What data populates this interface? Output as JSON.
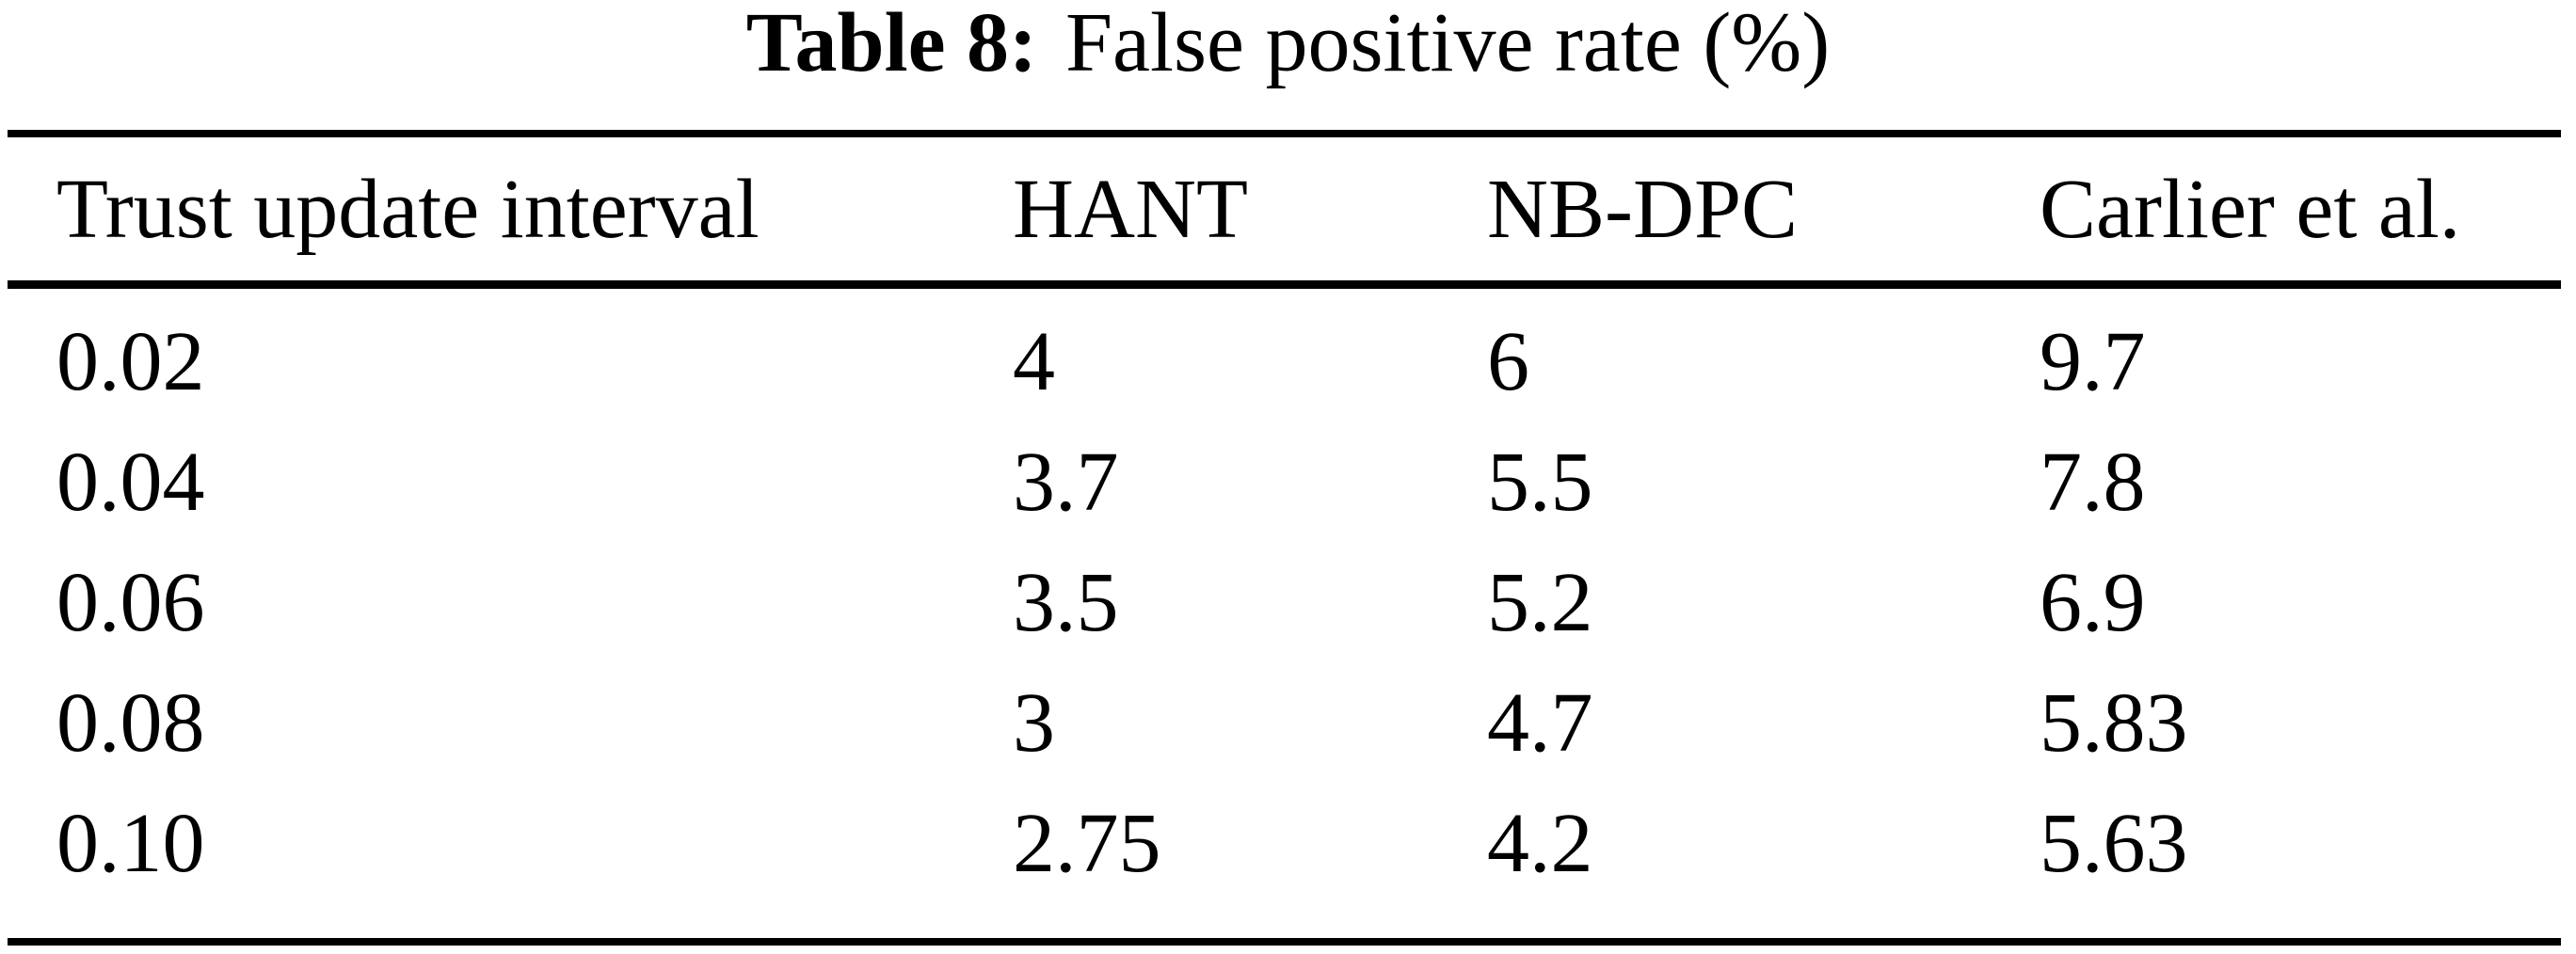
{
  "page": {
    "background": "#ffffff",
    "text_color": "#000000",
    "rule_color": "#000000"
  },
  "caption": {
    "label": "Table 8:",
    "title": "False positive rate (%)"
  },
  "table": {
    "columns": [
      "Trust update interval",
      "HANT",
      "NB-DPC",
      "Carlier et al."
    ],
    "rows": [
      [
        "0.02",
        "4",
        "6",
        "9.7"
      ],
      [
        "0.04",
        "3.7",
        "5.5",
        "7.8"
      ],
      [
        "0.06",
        "3.5",
        "5.2",
        "6.9"
      ],
      [
        "0.08",
        "3",
        "4.7",
        "5.83"
      ],
      [
        "0.10",
        "2.75",
        "4.2",
        "5.63"
      ]
    ]
  },
  "chart_data": {
    "type": "table",
    "title": "Table 8: False positive rate (%)",
    "columns": [
      "Trust update interval",
      "HANT",
      "NB-DPC",
      "Carlier et al."
    ],
    "rows": [
      [
        0.02,
        4,
        6,
        9.7
      ],
      [
        0.04,
        3.7,
        5.5,
        7.8
      ],
      [
        0.06,
        3.5,
        5.2,
        6.9
      ],
      [
        0.08,
        3,
        4.7,
        5.83
      ],
      [
        0.1,
        2.75,
        4.2,
        5.63
      ]
    ],
    "units": "percent",
    "notes": "False positive rate (%) versus trust update interval for three methods"
  }
}
